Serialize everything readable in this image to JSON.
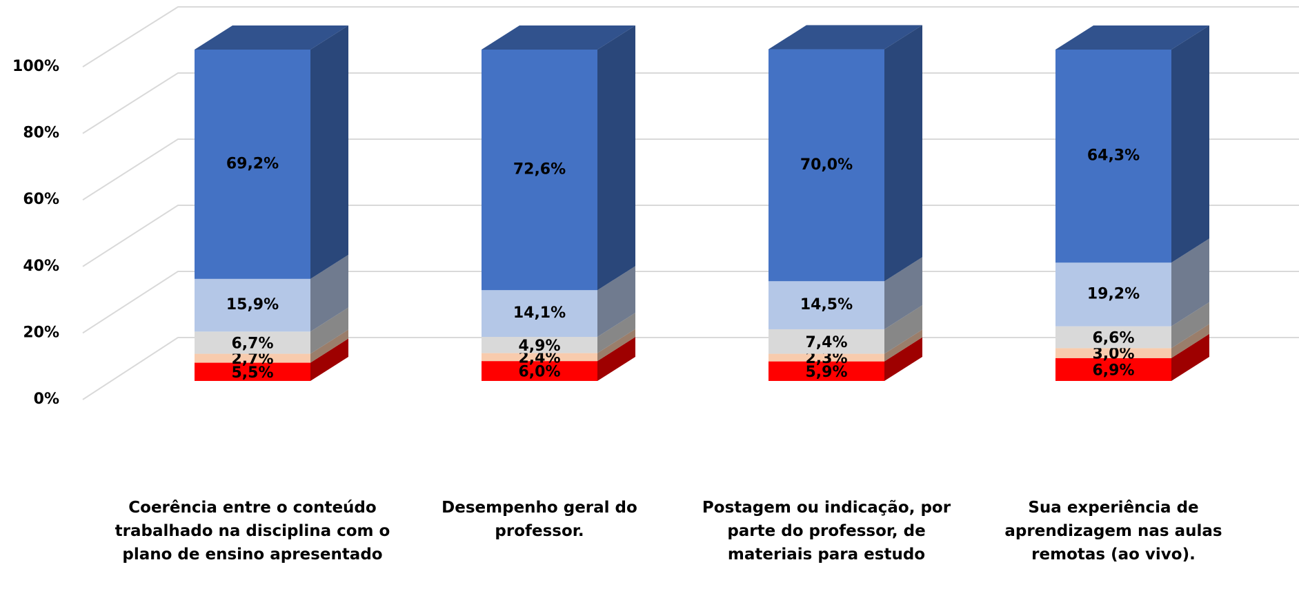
{
  "chart_data": {
    "type": "bar3d_stacked",
    "categories": [
      "Coerência entre o conteúdo trabalhado na disciplina com o plano de ensino apresentado",
      "Desempenho geral do professor.",
      "Postagem ou indicação, por parte do professor, de materiais para estudo",
      "Sua experiência de aprendizagem nas aulas remotas (ao vivo)."
    ],
    "series": [
      {
        "color": "#ff0000",
        "values": [
          5.5,
          6.0,
          5.9,
          6.9
        ],
        "value_labels": [
          "5,5%",
          "6,0%",
          "5,9%",
          "6,9%"
        ]
      },
      {
        "color": "#f8cbad",
        "values": [
          2.7,
          2.4,
          2.3,
          3.0
        ],
        "value_labels": [
          "2,7%",
          "2,4%",
          "2,3%",
          "3,0%"
        ]
      },
      {
        "color": "#d9d9d9",
        "values": [
          6.7,
          4.9,
          7.4,
          6.6
        ],
        "value_labels": [
          "6,7%",
          "4,9%",
          "7,4%",
          "6,6%"
        ]
      },
      {
        "color": "#b4c7e7",
        "values": [
          15.9,
          14.1,
          14.5,
          19.2
        ],
        "value_labels": [
          "15,9%",
          "14,1%",
          "14,5%",
          "19,2%"
        ]
      },
      {
        "color": "#4472c4",
        "values": [
          69.2,
          72.6,
          70.0,
          64.3
        ],
        "value_labels": [
          "69,2%",
          "72,6%",
          "70,0%",
          "64,3%"
        ]
      }
    ],
    "ylim": [
      0,
      100
    ],
    "yticks": [
      {
        "value": 0,
        "label": "0%"
      },
      {
        "value": 20,
        "label": "20%"
      },
      {
        "value": 40,
        "label": "40%"
      },
      {
        "value": 60,
        "label": "60%"
      },
      {
        "value": 80,
        "label": "80%"
      },
      {
        "value": 100,
        "label": "100%"
      }
    ],
    "grid": true
  }
}
